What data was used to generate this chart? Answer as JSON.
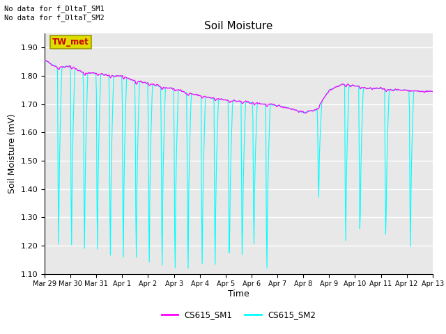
{
  "title": "Soil Moisture",
  "ylabel": "Soil Moisture (mV)",
  "xlabel": "Time",
  "ylim": [
    1.1,
    1.95
  ],
  "yticks": [
    1.1,
    1.2,
    1.3,
    1.4,
    1.5,
    1.6,
    1.7,
    1.8,
    1.9
  ],
  "xtick_labels": [
    "Mar 29",
    "Mar 30",
    "Mar 31",
    "Apr 1",
    "Apr 2",
    "Apr 3",
    "Apr 4",
    "Apr 5",
    "Apr 6",
    "Apr 7",
    "Apr 8",
    "Apr 9",
    "Apr 10",
    "Apr 11",
    "Apr 12",
    "Apr 13"
  ],
  "color_sm1": "#FF00FF",
  "color_sm2": "#00FFFF",
  "legend_sm1": "CS615_SM1",
  "legend_sm2": "CS615_SM2",
  "annotation_text": "No data for f_DltaT_SM1\nNo data for f_DltaT_SM2",
  "tw_met_label": "TW_met",
  "tw_met_bg": "#DDDD00",
  "tw_met_text_color": "#CC0000",
  "background_color": "#E8E8E8",
  "title_fontsize": 11,
  "axis_fontsize": 9,
  "tick_fontsize": 8
}
